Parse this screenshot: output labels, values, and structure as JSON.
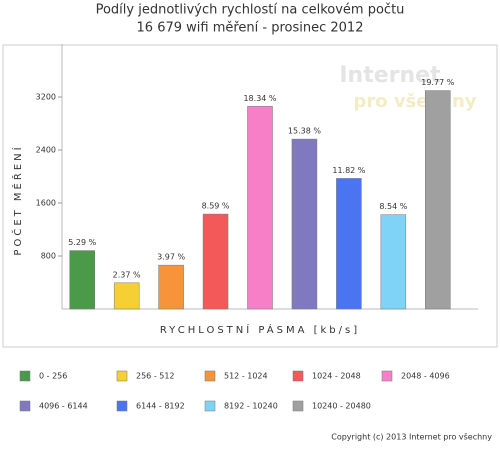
{
  "chart_data": {
    "type": "bar",
    "title": [
      "Podíly jednotlivých rychlostí na celkovém počtu",
      "16 679 wifi měření - prosinec 2012"
    ],
    "watermark": [
      "Internet",
      "pro všechny"
    ],
    "y_label": "POČET MĚŘENÍ",
    "x_label": "RYCHLOSTNÍ PÁSMA [kb/s]",
    "categories": [
      "0 - 256",
      "256 - 512",
      "512 - 1024",
      "1024 - 2048",
      "2048 - 4096",
      "4096 - 6144",
      "6144 - 8192",
      "8192 - 10240",
      "10240 - 20480"
    ],
    "values": [
      882,
      395,
      662,
      1433,
      3059,
      2565,
      1971,
      1424,
      3297
    ],
    "percent_labels": [
      "5.29 %",
      "2.37 %",
      "3.97 %",
      "8.59 %",
      "18.34 %",
      "15.38 %",
      "11.82 %",
      "8.54 %",
      "19.77 %"
    ],
    "colors": [
      "#4a9a4a",
      "#f5cf34",
      "#f7943a",
      "#f25a5a",
      "#f77fc8",
      "#8079c0",
      "#4a74f0",
      "#7fd3f7",
      "#a0a0a0"
    ],
    "ylim": [
      0,
      4000
    ],
    "yticks": [
      800,
      1600,
      2400,
      3200
    ],
    "footer": "Copyright (c) 2013 Internet pro všechny"
  }
}
